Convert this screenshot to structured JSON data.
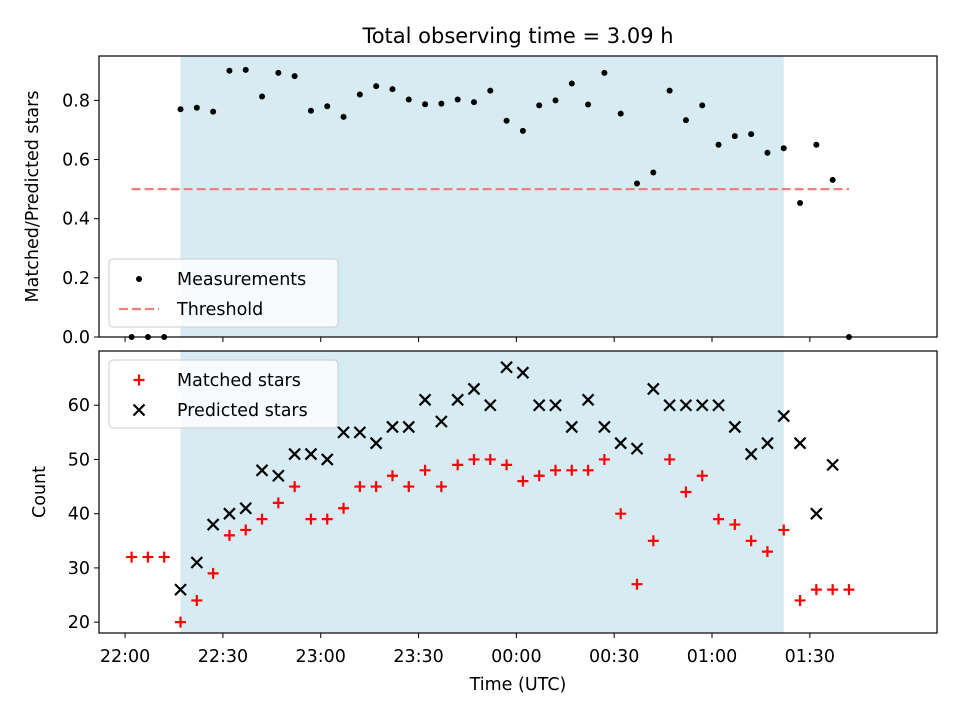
{
  "title": "Total observing time = 3.09 h",
  "colors": {
    "shade": "#add8e6",
    "measurement": "#000000",
    "threshold": "#f08080",
    "matched": "#ff0000",
    "predicted": "#000000"
  },
  "chart_data": [
    {
      "type": "scatter",
      "name": "ratio-panel",
      "ylabel": "Matched/Predicted stars",
      "xlabel": "",
      "xlim": [
        "21:52",
        "02:09"
      ],
      "ylim": [
        0,
        0.95
      ],
      "yticks": [
        "0.0",
        "0.2",
        "0.4",
        "0.6",
        "0.8"
      ],
      "shaded_interval": [
        "22:17",
        "01:22"
      ],
      "legend": {
        "position": "lower-left",
        "entries": [
          "Measurements",
          "Threshold"
        ]
      },
      "threshold": {
        "name": "Threshold",
        "y": 0.5,
        "x_range": [
          "22:02",
          "01:42"
        ]
      },
      "series": [
        {
          "name": "Measurements",
          "points": [
            [
              "22:02",
              0.0
            ],
            [
              "22:07",
              0.0
            ],
            [
              "22:12",
              0.0
            ],
            [
              "22:17",
              0.77
            ],
            [
              "22:22",
              0.775
            ],
            [
              "22:27",
              0.762
            ],
            [
              "22:32",
              0.9
            ],
            [
              "22:37",
              0.903
            ],
            [
              "22:42",
              0.813
            ],
            [
              "22:47",
              0.893
            ],
            [
              "22:52",
              0.882
            ],
            [
              "22:57",
              0.765
            ],
            [
              "23:02",
              0.78
            ],
            [
              "23:07",
              0.744
            ],
            [
              "23:12",
              0.82
            ],
            [
              "23:17",
              0.848
            ],
            [
              "23:22",
              0.838
            ],
            [
              "23:27",
              0.803
            ],
            [
              "23:32",
              0.787
            ],
            [
              "23:37",
              0.789
            ],
            [
              "23:42",
              0.803
            ],
            [
              "23:47",
              0.794
            ],
            [
              "23:52",
              0.833
            ],
            [
              "23:57",
              0.731
            ],
            [
              "00:02",
              0.697
            ],
            [
              "00:07",
              0.783
            ],
            [
              "00:12",
              0.8
            ],
            [
              "00:17",
              0.857
            ],
            [
              "00:22",
              0.786
            ],
            [
              "00:27",
              0.893
            ],
            [
              "00:32",
              0.755
            ],
            [
              "00:37",
              0.519
            ],
            [
              "00:42",
              0.556
            ],
            [
              "00:47",
              0.833
            ],
            [
              "00:52",
              0.733
            ],
            [
              "00:57",
              0.783
            ],
            [
              "01:02",
              0.65
            ],
            [
              "01:07",
              0.679
            ],
            [
              "01:12",
              0.686
            ],
            [
              "01:17",
              0.623
            ],
            [
              "01:22",
              0.638
            ],
            [
              "01:27",
              0.453
            ],
            [
              "01:32",
              0.65
            ],
            [
              "01:37",
              0.531
            ],
            [
              "01:42",
              0.0
            ]
          ]
        }
      ]
    },
    {
      "type": "scatter",
      "name": "count-panel",
      "ylabel": "Count",
      "xlabel": "Time (UTC)",
      "xlim": [
        "21:52",
        "02:09"
      ],
      "ylim": [
        18,
        70
      ],
      "yticks": [
        "20",
        "30",
        "40",
        "50",
        "60"
      ],
      "xticks": [
        "22:00",
        "22:30",
        "23:00",
        "23:30",
        "00:00",
        "00:30",
        "01:00",
        "01:30"
      ],
      "shaded_interval": [
        "22:17",
        "01:22"
      ],
      "legend": {
        "position": "upper-left",
        "entries": [
          "Matched stars",
          "Predicted stars"
        ]
      },
      "series": [
        {
          "name": "Matched stars",
          "marker": "plus",
          "points": [
            [
              "22:02",
              32
            ],
            [
              "22:07",
              32
            ],
            [
              "22:12",
              32
            ],
            [
              "22:17",
              20
            ],
            [
              "22:22",
              24
            ],
            [
              "22:27",
              29
            ],
            [
              "22:32",
              36
            ],
            [
              "22:37",
              37
            ],
            [
              "22:42",
              39
            ],
            [
              "22:47",
              42
            ],
            [
              "22:52",
              45
            ],
            [
              "22:57",
              39
            ],
            [
              "23:02",
              39
            ],
            [
              "23:07",
              41
            ],
            [
              "23:12",
              45
            ],
            [
              "23:17",
              45
            ],
            [
              "23:22",
              47
            ],
            [
              "23:27",
              45
            ],
            [
              "23:32",
              48
            ],
            [
              "23:37",
              45
            ],
            [
              "23:42",
              49
            ],
            [
              "23:47",
              50
            ],
            [
              "23:52",
              50
            ],
            [
              "23:57",
              49
            ],
            [
              "00:02",
              46
            ],
            [
              "00:07",
              47
            ],
            [
              "00:12",
              48
            ],
            [
              "00:17",
              48
            ],
            [
              "00:22",
              48
            ],
            [
              "00:27",
              50
            ],
            [
              "00:32",
              40
            ],
            [
              "00:37",
              27
            ],
            [
              "00:42",
              35
            ],
            [
              "00:47",
              50
            ],
            [
              "00:52",
              44
            ],
            [
              "00:57",
              47
            ],
            [
              "01:02",
              39
            ],
            [
              "01:07",
              38
            ],
            [
              "01:12",
              35
            ],
            [
              "01:17",
              33
            ],
            [
              "01:22",
              37
            ],
            [
              "01:27",
              24
            ],
            [
              "01:32",
              26
            ],
            [
              "01:37",
              26
            ],
            [
              "01:42",
              26
            ]
          ]
        },
        {
          "name": "Predicted stars",
          "marker": "x",
          "points": [
            [
              "22:17",
              26
            ],
            [
              "22:22",
              31
            ],
            [
              "22:27",
              38
            ],
            [
              "22:32",
              40
            ],
            [
              "22:37",
              41
            ],
            [
              "22:42",
              48
            ],
            [
              "22:47",
              47
            ],
            [
              "22:52",
              51
            ],
            [
              "22:57",
              51
            ],
            [
              "23:02",
              50
            ],
            [
              "23:07",
              55
            ],
            [
              "23:12",
              55
            ],
            [
              "23:17",
              53
            ],
            [
              "23:22",
              56
            ],
            [
              "23:27",
              56
            ],
            [
              "23:32",
              61
            ],
            [
              "23:37",
              57
            ],
            [
              "23:42",
              61
            ],
            [
              "23:47",
              63
            ],
            [
              "23:52",
              60
            ],
            [
              "23:57",
              67
            ],
            [
              "00:02",
              66
            ],
            [
              "00:07",
              60
            ],
            [
              "00:12",
              60
            ],
            [
              "00:17",
              56
            ],
            [
              "00:22",
              61
            ],
            [
              "00:27",
              56
            ],
            [
              "00:32",
              53
            ],
            [
              "00:37",
              52
            ],
            [
              "00:42",
              63
            ],
            [
              "00:47",
              60
            ],
            [
              "00:52",
              60
            ],
            [
              "00:57",
              60
            ],
            [
              "01:02",
              60
            ],
            [
              "01:07",
              56
            ],
            [
              "01:12",
              51
            ],
            [
              "01:17",
              53
            ],
            [
              "01:22",
              58
            ],
            [
              "01:27",
              53
            ],
            [
              "01:32",
              40
            ],
            [
              "01:37",
              49
            ]
          ]
        }
      ]
    }
  ]
}
